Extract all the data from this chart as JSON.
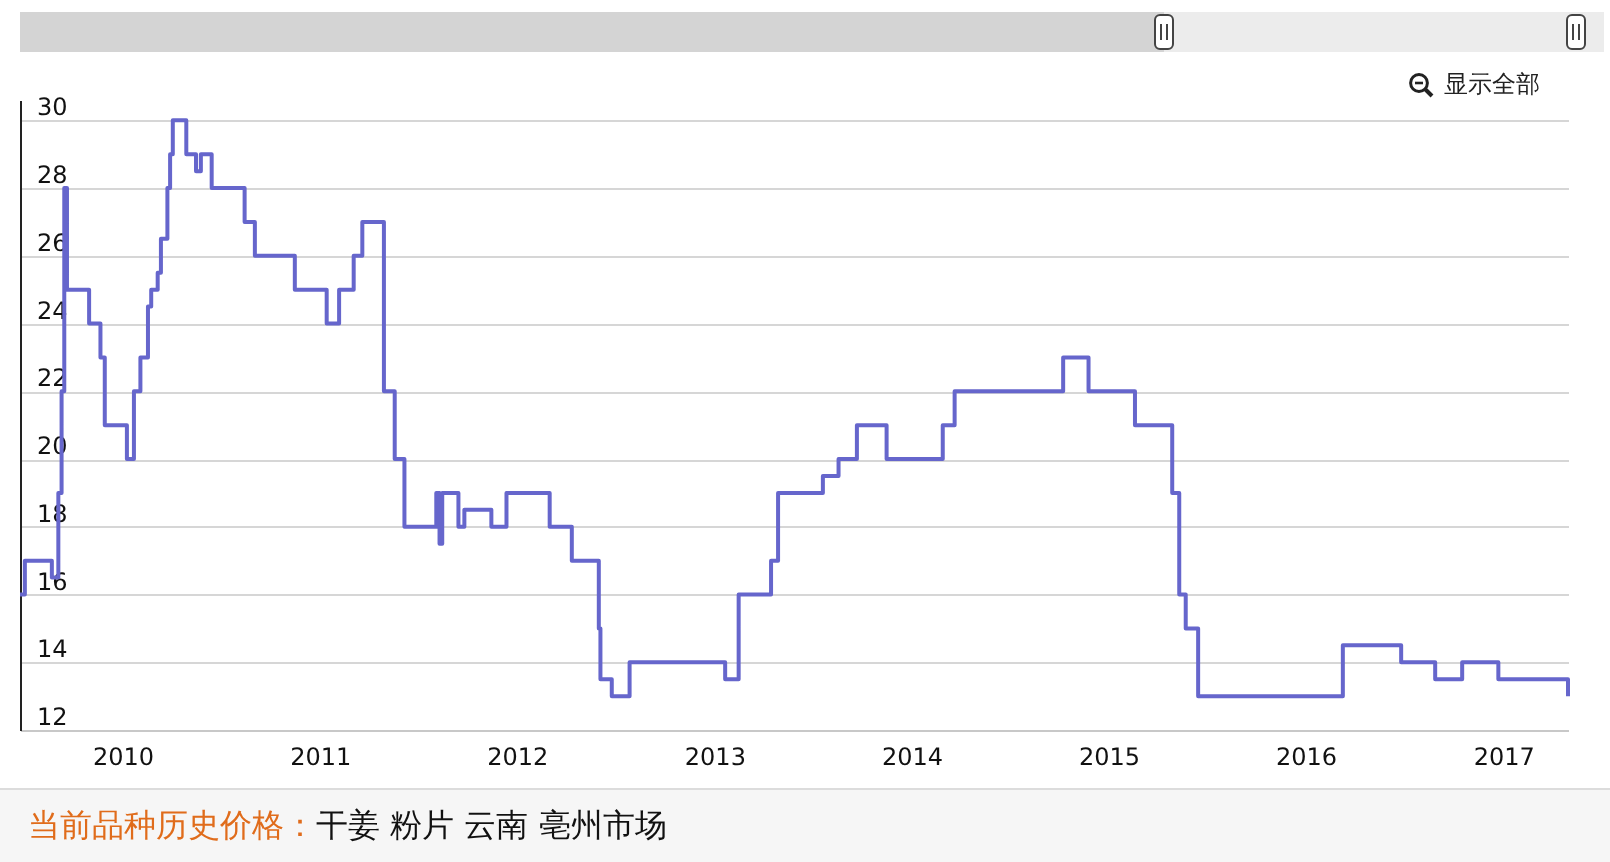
{
  "chart_data": {
    "type": "step",
    "title": "当前品种历史价格：",
    "subtitle": "干姜 粉片 云南 亳州市场",
    "annotations": [
      "显示全部"
    ],
    "x": [
      "2009-06-25",
      "2009-07-04",
      "2009-08-23",
      "2009-09-04",
      "2009-09-10",
      "2009-09-15",
      "2009-09-20",
      "2009-10-31",
      "2009-11-21",
      "2009-11-29",
      "2010-01-09",
      "2010-01-22",
      "2010-02-03",
      "2010-02-17",
      "2010-02-23",
      "2010-03-07",
      "2010-03-13",
      "2010-03-25",
      "2010-03-30",
      "2010-04-04",
      "2010-04-29",
      "2010-05-17",
      "2010-05-26",
      "2010-06-15",
      "2010-08-15",
      "2010-09-03",
      "2010-11-16",
      "2011-01-14",
      "2011-02-06",
      "2011-03-05",
      "2011-03-21",
      "2011-04-30",
      "2011-05-20",
      "2011-06-07",
      "2011-08-05",
      "2011-08-11",
      "2011-08-16",
      "2011-09-15",
      "2011-09-26",
      "2011-11-15",
      "2011-12-13",
      "2012-03-02",
      "2012-04-12",
      "2012-06-01",
      "2012-06-04",
      "2012-06-25",
      "2012-07-28",
      "2013-01-21",
      "2013-02-15",
      "2013-04-16",
      "2013-04-29",
      "2013-07-21",
      "2013-08-19",
      "2013-09-22",
      "2013-11-16",
      "2014-02-28",
      "2014-03-22",
      "2014-10-09",
      "2014-11-25",
      "2015-02-19",
      "2015-04-29",
      "2015-05-12",
      "2015-05-24",
      "2015-06-16",
      "2016-03-10",
      "2016-06-26",
      "2016-08-28",
      "2016-10-17",
      "2016-12-23",
      "2017-05-01"
    ],
    "values": [
      16,
      17,
      16.5,
      19,
      22,
      28,
      25,
      24,
      23,
      21,
      20,
      22,
      23,
      24.5,
      25,
      25.5,
      26.5,
      28,
      29,
      30,
      29,
      28.5,
      29,
      28,
      27,
      26,
      25,
      24,
      25,
      26,
      27,
      22,
      20,
      18,
      19,
      17.5,
      19,
      18,
      18.5,
      18,
      19,
      18,
      17,
      15,
      13.5,
      13,
      14,
      13.5,
      16,
      17,
      19,
      19.5,
      20,
      21,
      20,
      21,
      22,
      23,
      22,
      21,
      19,
      16,
      15,
      13,
      14.5,
      14,
      13.5,
      14,
      13.5,
      13
    ],
    "color": "#6666cc",
    "xlim": [
      "2009-06-25",
      "2017-05-01"
    ],
    "xticks": [
      "2010",
      "2011",
      "2012",
      "2013",
      "2014",
      "2015",
      "2016",
      "2017"
    ],
    "ylim": [
      12,
      30.6
    ],
    "yticks": [
      12,
      14,
      16,
      18,
      20,
      22,
      24,
      26,
      28,
      30
    ],
    "grid": "y"
  }
}
